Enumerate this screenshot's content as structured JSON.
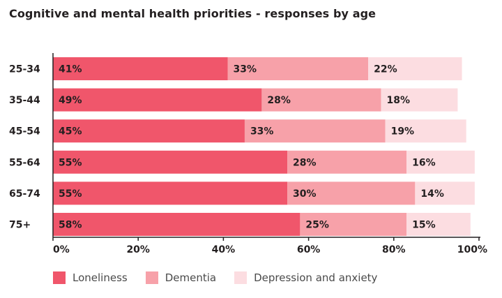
{
  "title": "Cognitive and mental health priorities - responses by age",
  "colors": {
    "loneliness": "#f0566b",
    "dementia": "#f7a1a9",
    "depression": "#fcdde1",
    "axis": "#231f20"
  },
  "chart_data": {
    "type": "bar",
    "orientation": "horizontal",
    "stacked": true,
    "title": "Cognitive and mental health priorities - responses by age",
    "categories": [
      "25-34",
      "35-44",
      "45-54",
      "55-64",
      "65-74",
      "75+"
    ],
    "series": [
      {
        "name": "Loneliness",
        "values": [
          41,
          49,
          45,
          55,
          55,
          58
        ],
        "color": "#f0566b"
      },
      {
        "name": "Dementia",
        "values": [
          33,
          28,
          33,
          28,
          30,
          25
        ],
        "color": "#f7a1a9"
      },
      {
        "name": "Depression and anxiety",
        "values": [
          22,
          18,
          19,
          16,
          14,
          15
        ],
        "color": "#fcdde1"
      }
    ],
    "xlim": [
      0,
      100
    ],
    "xticks": [
      0,
      20,
      40,
      60,
      80,
      100
    ],
    "xtick_labels": [
      "0%",
      "20%",
      "40%",
      "60%",
      "80%",
      "100%"
    ],
    "value_suffix": "%",
    "grid": false,
    "legend_position": "bottom-left"
  }
}
